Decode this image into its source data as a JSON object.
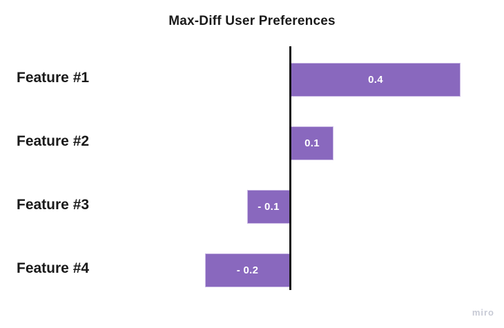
{
  "title": "Max-Diff User Preferences",
  "watermark": "miro",
  "colors": {
    "background": "#ffffff",
    "bar": "#8968be",
    "bar_border": "#c9b8e4",
    "axis": "#151515",
    "label_text": "#1a1a1a",
    "value_text": "#ffffff",
    "watermark_text": "#c7cad5"
  },
  "chart_data": {
    "type": "bar",
    "orientation": "horizontal",
    "title": "Max-Diff User Preferences",
    "categories": [
      "Feature #1",
      "Feature #2",
      "Feature #3",
      "Feature #4"
    ],
    "values": [
      0.4,
      0.1,
      -0.1,
      -0.2
    ],
    "value_labels": [
      "0.4",
      "0.1",
      "- 0.1",
      "- 0.2"
    ],
    "xlabel": "",
    "ylabel": "",
    "xlim": [
      -0.4,
      0.5
    ],
    "baseline": 0,
    "grid": false,
    "legend": false
  }
}
